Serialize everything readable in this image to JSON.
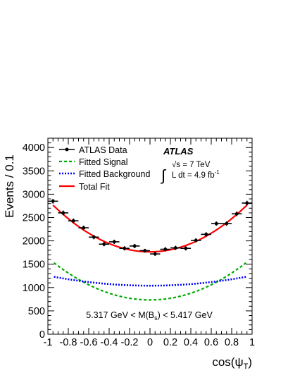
{
  "chart_data": {
    "type": "scatter",
    "title": "",
    "xlabel_main": "cos(ψ",
    "xlabel_sub": "T",
    "xlabel_close": ")",
    "ylabel": "Events / 0.1",
    "xlim": [
      -1,
      1
    ],
    "ylim": [
      0,
      4200
    ],
    "xticks": [
      -1,
      -0.8,
      -0.6,
      -0.4,
      -0.2,
      0,
      0.2,
      0.4,
      0.6,
      0.8,
      1
    ],
    "xtick_labels": [
      "-1",
      "-0.8",
      "-0.6",
      "-0.4",
      "-0.2",
      "0",
      "0.2",
      "0.4",
      "0.6",
      "0.8",
      "1"
    ],
    "yticks": [
      0,
      500,
      1000,
      1500,
      2000,
      2500,
      3000,
      3500,
      4000
    ],
    "ytick_labels": [
      "0",
      "500",
      "1000",
      "1500",
      "2000",
      "2500",
      "3000",
      "3500",
      "4000"
    ],
    "grid": false,
    "legend_position": "top-left",
    "legend": {
      "data": "ATLAS Data",
      "signal": "Fitted Signal",
      "background": "Fitted Background",
      "total": "Total Fit"
    },
    "annotations": {
      "experiment": "ATLAS",
      "sqrt_s": "√s = 7 TeV",
      "lumi_prefix": "L dt = 4.9 fb",
      "lumi_exp": "-1",
      "mass_window_left": "5.317 GeV < M(B",
      "mass_window_sub": "s",
      "mass_window_right": ") < 5.417 GeV"
    },
    "data_points": {
      "x": [
        -0.95,
        -0.85,
        -0.75,
        -0.65,
        -0.55,
        -0.45,
        -0.35,
        -0.25,
        -0.15,
        -0.05,
        0.05,
        0.15,
        0.25,
        0.35,
        0.45,
        0.55,
        0.65,
        0.75,
        0.85,
        0.95
      ],
      "y": [
        2850,
        2600,
        2430,
        2280,
        2080,
        1930,
        1980,
        1840,
        1890,
        1790,
        1720,
        1820,
        1850,
        1840,
        2010,
        2140,
        2370,
        2370,
        2580,
        2810
      ],
      "yerr": [
        50,
        50,
        50,
        45,
        45,
        45,
        45,
        45,
        45,
        40,
        40,
        45,
        45,
        45,
        45,
        45,
        45,
        45,
        50,
        50
      ]
    },
    "curves": {
      "total_fit": {
        "a": 1765,
        "b": 1110,
        "color": "#ff0000",
        "style": "solid"
      },
      "signal": {
        "a": 735,
        "b": 900,
        "color": "#00aa00",
        "style": "dashed"
      },
      "background": {
        "a": 1040,
        "b": 215,
        "color": "#0000ff",
        "style": "dotted"
      },
      "model": "y = a + b * x^2"
    }
  }
}
